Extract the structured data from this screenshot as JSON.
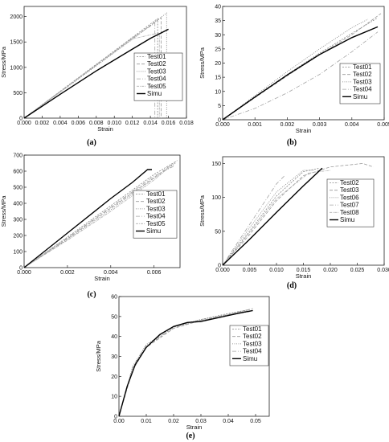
{
  "chart_data": [
    {
      "type": "line",
      "panel_label": "(a)",
      "xlabel": "Strain",
      "ylabel": "Stress/MPa",
      "xlim": [
        0,
        0.018
      ],
      "ylim": [
        0,
        2200
      ],
      "xticks": [
        0,
        0.002,
        0.004,
        0.006,
        0.008,
        0.01,
        0.012,
        0.014,
        0.016,
        0.018
      ],
      "xtick_labels": [
        "0.000",
        "0.002",
        "0.004",
        "0.006",
        "0.008",
        "0.010",
        "0.012",
        "0.014",
        "0.016",
        "0.018"
      ],
      "yticks": [
        0,
        500,
        1000,
        1500,
        2000
      ],
      "ytick_labels": [
        "0",
        "500",
        "1000",
        "1500",
        "2000"
      ],
      "legend_position": "lower-right",
      "series": [
        {
          "name": "Test01",
          "style": "test",
          "x": [
            0,
            0.004,
            0.008,
            0.012,
            0.0148,
            0.0148
          ],
          "y": [
            0,
            530,
            1060,
            1590,
            1960,
            0
          ]
        },
        {
          "name": "Test02",
          "style": "test",
          "x": [
            0,
            0.004,
            0.008,
            0.012,
            0.0152,
            0.0152
          ],
          "y": [
            0,
            520,
            1045,
            1570,
            1980,
            0
          ]
        },
        {
          "name": "Test03",
          "style": "test",
          "x": [
            0,
            0.004,
            0.008,
            0.012,
            0.0158,
            0.0158
          ],
          "y": [
            0,
            510,
            1030,
            1550,
            2070,
            0
          ]
        },
        {
          "name": "Test04",
          "style": "test",
          "x": [
            0,
            0.004,
            0.008,
            0.012,
            0.0145,
            0.0145
          ],
          "y": [
            0,
            525,
            1050,
            1580,
            1870,
            0
          ]
        },
        {
          "name": "Test05",
          "style": "test",
          "x": [
            0,
            0.004,
            0.008,
            0.012,
            0.015,
            0.015
          ],
          "y": [
            0,
            515,
            1040,
            1560,
            1680,
            0
          ]
        },
        {
          "name": "Simu",
          "style": "simu",
          "x": [
            0,
            0.004,
            0.008,
            0.012,
            0.014,
            0.016
          ],
          "y": [
            0,
            470,
            930,
            1360,
            1570,
            1750
          ]
        }
      ]
    },
    {
      "type": "line",
      "panel_label": "(b)",
      "xlabel": "Strain",
      "ylabel": "Stress/MPa",
      "xlim": [
        0,
        0.005
      ],
      "ylim": [
        0,
        40
      ],
      "xticks": [
        0,
        0.001,
        0.002,
        0.003,
        0.004,
        0.005
      ],
      "xtick_labels": [
        "0.000",
        "0.001",
        "0.002",
        "0.003",
        "0.004",
        "0.005"
      ],
      "yticks": [
        0,
        5,
        10,
        15,
        20,
        25,
        30,
        35,
        40
      ],
      "ytick_labels": [
        "0",
        "5",
        "10",
        "15",
        "20",
        "25",
        "30",
        "35",
        "40"
      ],
      "legend_position": "lower-right",
      "series": [
        {
          "name": "Test01",
          "style": "test",
          "x": [
            0,
            0.001,
            0.002,
            0.003,
            0.004,
            0.0048
          ],
          "y": [
            0,
            8.2,
            16,
            23.5,
            30.5,
            36
          ]
        },
        {
          "name": "Test02",
          "style": "test",
          "x": [
            0,
            0.001,
            0.002,
            0.003,
            0.004,
            0.0049
          ],
          "y": [
            0,
            7.8,
            15.5,
            23,
            30,
            37.5
          ]
        },
        {
          "name": "Test03",
          "style": "test",
          "x": [
            0,
            0.001,
            0.002,
            0.003,
            0.004,
            0.0045
          ],
          "y": [
            0,
            8.5,
            17,
            25,
            32.5,
            35.5
          ]
        },
        {
          "name": "Test04",
          "style": "test",
          "x": [
            0,
            0.001,
            0.002,
            0.003,
            0.004,
            0.0048
          ],
          "y": [
            0,
            4,
            9.5,
            16,
            24,
            31
          ]
        },
        {
          "name": "Simu",
          "style": "simu",
          "x": [
            0,
            0.001,
            0.002,
            0.003,
            0.004,
            0.0048
          ],
          "y": [
            0,
            8,
            15.8,
            23,
            29,
            32.8
          ]
        }
      ]
    },
    {
      "type": "line",
      "panel_label": "(c)",
      "xlabel": "Strain",
      "ylabel": "Stress/MPa",
      "xlim": [
        0,
        0.0072
      ],
      "ylim": [
        0,
        700
      ],
      "xticks": [
        0,
        0.002,
        0.004,
        0.006
      ],
      "xtick_labels": [
        "0.000",
        "0.002",
        "0.004",
        "0.006"
      ],
      "yticks": [
        0,
        100,
        200,
        300,
        400,
        500,
        600,
        700
      ],
      "ytick_labels": [
        "0",
        "100",
        "200",
        "300",
        "400",
        "500",
        "600",
        "700"
      ],
      "legend_position": "lower-right",
      "series": [
        {
          "name": "Test01",
          "style": "test",
          "x": [
            0,
            0.002,
            0.004,
            0.006,
            0.007
          ],
          "y": [
            0,
            190,
            385,
            580,
            660
          ]
        },
        {
          "name": "Test02",
          "style": "test",
          "x": [
            0,
            0.002,
            0.004,
            0.006,
            0.0068
          ],
          "y": [
            0,
            180,
            370,
            560,
            640
          ]
        },
        {
          "name": "Test03",
          "style": "test",
          "x": [
            0,
            0.002,
            0.004,
            0.006,
            0.007
          ],
          "y": [
            0,
            175,
            360,
            555,
            650
          ]
        },
        {
          "name": "Test04",
          "style": "test",
          "x": [
            0,
            0.002,
            0.004,
            0.006,
            0.0069
          ],
          "y": [
            0,
            185,
            375,
            570,
            630
          ]
        },
        {
          "name": "Test05",
          "style": "test",
          "x": [
            0,
            0.002,
            0.004,
            0.006,
            0.0071
          ],
          "y": [
            0,
            170,
            350,
            545,
            670
          ]
        },
        {
          "name": "Simu",
          "style": "simu",
          "x": [
            0,
            0.002,
            0.004,
            0.005,
            0.0057,
            0.0059
          ],
          "y": [
            0,
            215,
            430,
            530,
            610,
            610
          ]
        }
      ]
    },
    {
      "type": "line",
      "panel_label": "(d)",
      "xlabel": "Strain",
      "ylabel": "Stress/MPa",
      "xlim": [
        0,
        0.03
      ],
      "ylim": [
        0,
        160
      ],
      "xticks": [
        0,
        0.005,
        0.01,
        0.015,
        0.02,
        0.025,
        0.03
      ],
      "xtick_labels": [
        "0.000",
        "0.005",
        "0.010",
        "0.015",
        "0.020",
        "0.025",
        "0.030"
      ],
      "yticks": [
        0,
        50,
        100,
        150
      ],
      "ytick_labels": [
        "0",
        "50",
        "100",
        "150"
      ],
      "legend_position": "lower-right",
      "series": [
        {
          "name": "Test02",
          "style": "test",
          "x": [
            0,
            0.005,
            0.01,
            0.015,
            0.018
          ],
          "y": [
            0,
            50,
            102,
            138,
            143
          ]
        },
        {
          "name": "Test03",
          "style": "test",
          "x": [
            0,
            0.005,
            0.01,
            0.015,
            0.02,
            0.026,
            0.028
          ],
          "y": [
            0,
            45,
            95,
            132,
            145,
            150,
            145
          ]
        },
        {
          "name": "Test06",
          "style": "test",
          "x": [
            0,
            0.005,
            0.01,
            0.015,
            0.017
          ],
          "y": [
            0,
            55,
            108,
            140,
            140
          ]
        },
        {
          "name": "Test07",
          "style": "test",
          "x": [
            0,
            0.005,
            0.01,
            0.0115
          ],
          "y": [
            0,
            60,
            120,
            132
          ]
        },
        {
          "name": "Test08",
          "style": "test",
          "x": [
            0,
            0.005,
            0.01,
            0.016,
            0.02
          ],
          "y": [
            0,
            48,
            98,
            136,
            140
          ]
        },
        {
          "name": "Simu",
          "style": "simu",
          "x": [
            0,
            0.005,
            0.01,
            0.015,
            0.0185
          ],
          "y": [
            0,
            38,
            78,
            117,
            143
          ]
        }
      ]
    },
    {
      "type": "line",
      "panel_label": "(e)",
      "xlabel": "Strain",
      "ylabel": "Stress/MPa",
      "xlim": [
        0,
        0.055
      ],
      "ylim": [
        0,
        60
      ],
      "xticks": [
        0,
        0.01,
        0.02,
        0.03,
        0.04,
        0.05
      ],
      "xtick_labels": [
        "0.00",
        "0.01",
        "0.02",
        "0.03",
        "0.04",
        "0.05"
      ],
      "yticks": [
        0,
        10,
        20,
        30,
        40,
        50,
        60
      ],
      "ytick_labels": [
        "0",
        "10",
        "20",
        "30",
        "40",
        "50",
        "60"
      ],
      "legend_position": "lower-right",
      "series": [
        {
          "name": "Test01",
          "style": "test",
          "x": [
            0,
            0.005,
            0.01,
            0.02,
            0.03,
            0.04,
            0.048
          ],
          "y": [
            0,
            24,
            35,
            44.5,
            48.5,
            51.5,
            53.5
          ]
        },
        {
          "name": "Test02",
          "style": "test",
          "x": [
            0,
            0.005,
            0.01,
            0.02,
            0.03,
            0.04,
            0.049
          ],
          "y": [
            0,
            23,
            34.5,
            44,
            48,
            51,
            54
          ]
        },
        {
          "name": "Test03",
          "style": "test",
          "x": [
            0,
            0.005,
            0.01,
            0.02,
            0.03,
            0.04,
            0.047
          ],
          "y": [
            0,
            25,
            36,
            45,
            48.5,
            51,
            53
          ]
        },
        {
          "name": "Test04",
          "style": "test",
          "x": [
            0,
            0.005,
            0.01,
            0.02,
            0.03,
            0.04,
            0.048
          ],
          "y": [
            0,
            24.5,
            35.5,
            44.5,
            48,
            50.5,
            52.5
          ]
        },
        {
          "name": "Simu",
          "style": "simu",
          "x": [
            0,
            0.003,
            0.006,
            0.01,
            0.015,
            0.02,
            0.025,
            0.03,
            0.035,
            0.04,
            0.045,
            0.049
          ],
          "y": [
            0,
            15,
            26,
            34.5,
            41,
            45,
            47,
            47.5,
            49,
            50.5,
            52,
            53
          ]
        }
      ]
    }
  ]
}
